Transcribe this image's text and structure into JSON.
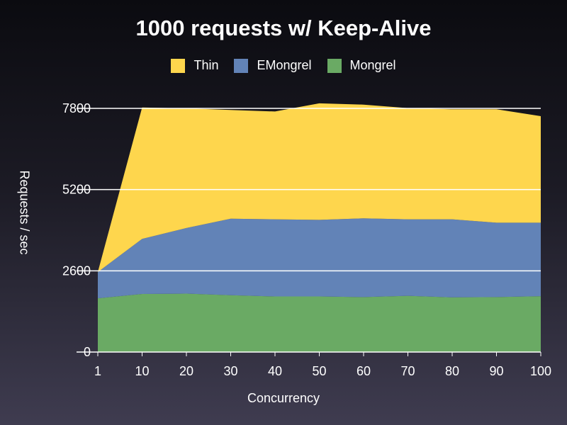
{
  "chart_data": {
    "type": "area",
    "stacked": true,
    "title": "1000 requests w/ Keep-Alive",
    "xlabel": "Concurrency",
    "ylabel": "Requests / sec",
    "x": [
      1,
      10,
      20,
      30,
      40,
      50,
      60,
      70,
      80,
      90,
      100
    ],
    "yticks": [
      0,
      2600,
      5200,
      7800
    ],
    "ylim": [
      0,
      7800
    ],
    "legend": "top",
    "grid": true,
    "series": [
      {
        "name": "Mongrel",
        "color": "#6aaa64",
        "values": [
          1720,
          1860,
          1870,
          1820,
          1780,
          1780,
          1760,
          1800,
          1750,
          1760,
          1790
        ]
      },
      {
        "name": "EMongrel",
        "color": "#6283b7",
        "values": [
          840,
          1760,
          2100,
          2450,
          2470,
          2450,
          2520,
          2450,
          2500,
          2380,
          2350
        ]
      },
      {
        "name": "Thin",
        "color": "#fed64d",
        "values": [
          0,
          4210,
          3830,
          3480,
          3450,
          3730,
          3640,
          3560,
          3520,
          3630,
          3410
        ]
      }
    ],
    "legend_order": [
      "Thin",
      "EMongrel",
      "Mongrel"
    ]
  }
}
